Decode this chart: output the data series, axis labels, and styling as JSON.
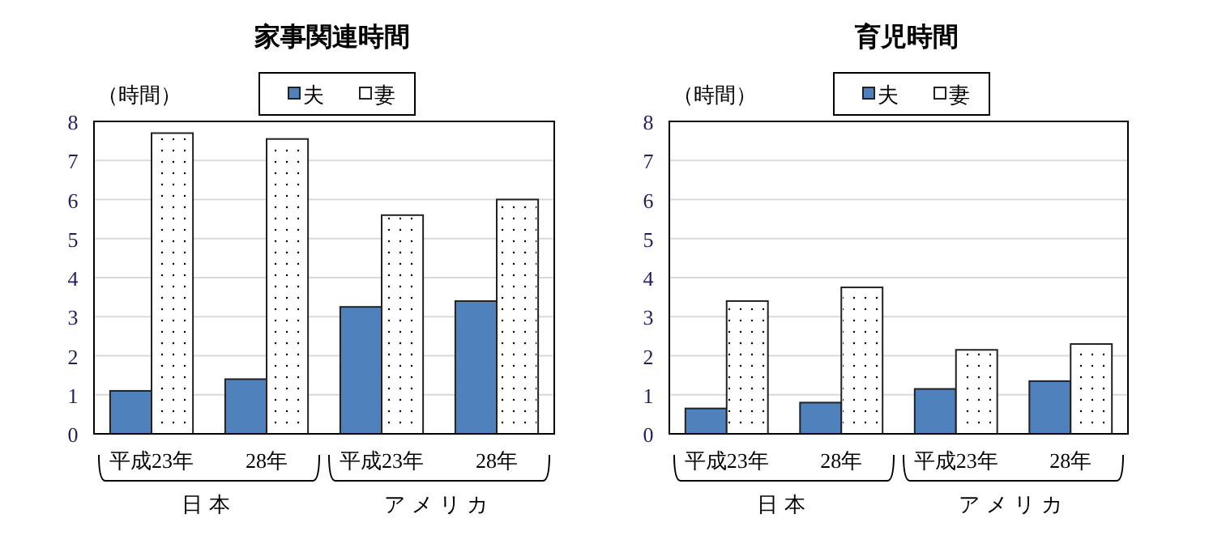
{
  "chart_data": [
    {
      "type": "bar",
      "title": "家事関連時間",
      "ylabel": "（時間）",
      "categories": [
        "平成23年",
        "28年",
        "平成23年",
        "28年"
      ],
      "series": [
        {
          "name": "夫",
          "color": "#4f81bd",
          "values": [
            1.1,
            1.4,
            3.25,
            3.4
          ]
        },
        {
          "name": "妻",
          "color": "#ffffff",
          "values": [
            7.7,
            7.55,
            5.6,
            6.0
          ]
        }
      ],
      "annotations": [
        "日本",
        "アメリカ"
      ],
      "ylim": [
        0,
        8
      ],
      "yticks": [
        0,
        1,
        2,
        3,
        4,
        5,
        6,
        7,
        8
      ],
      "grid": "y",
      "legend": "top"
    },
    {
      "type": "bar",
      "title": "育児時間",
      "ylabel": "（時間）",
      "categories": [
        "平成23年",
        "28年",
        "平成23年",
        "28年"
      ],
      "series": [
        {
          "name": "夫",
          "color": "#4f81bd",
          "values": [
            0.65,
            0.8,
            1.15,
            1.35
          ]
        },
        {
          "name": "妻",
          "color": "#ffffff",
          "values": [
            3.4,
            3.75,
            2.15,
            2.3
          ]
        }
      ],
      "annotations": [
        "日本",
        "アメリカ"
      ],
      "ylim": [
        0,
        8
      ],
      "yticks": [
        0,
        1,
        2,
        3,
        4,
        5,
        6,
        7,
        8
      ],
      "grid": "y",
      "legend": "top"
    }
  ]
}
